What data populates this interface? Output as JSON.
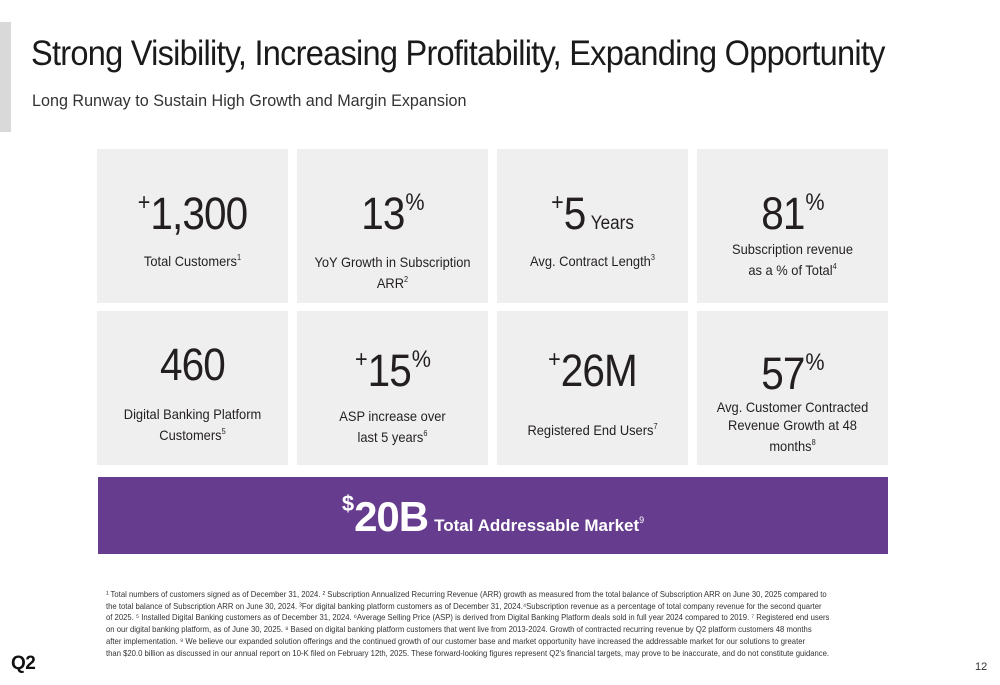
{
  "header": {
    "title": "Strong Visibility, Increasing Profitability, Expanding Opportunity",
    "subtitle": "Long Runway to Sustain High Growth and Margin Expansion"
  },
  "metrics": [
    {
      "prefix": "+",
      "value": "1,300",
      "suffix": "",
      "unit": "",
      "label": "Total Customers",
      "footnote": "1"
    },
    {
      "prefix": "",
      "value": "13",
      "suffix": "%",
      "unit": "",
      "label_line1": "YoY Growth in Subscription",
      "label_line2": "ARR",
      "footnote": "2"
    },
    {
      "prefix": "+",
      "value": "5",
      "suffix": "",
      "unit": "Years",
      "label": "Avg. Contract Length",
      "footnote": "3"
    },
    {
      "prefix": "",
      "value": "81",
      "suffix": "%",
      "unit": "",
      "label_line1": "Subscription revenue",
      "label_line2": "as a % of Total",
      "footnote": "4"
    },
    {
      "prefix": "",
      "value": "460",
      "suffix": "",
      "unit": "",
      "label_line1": "Digital Banking Platform",
      "label_line2": "Customers",
      "footnote": "5"
    },
    {
      "prefix": "+",
      "value": "15",
      "suffix": "%",
      "unit": "",
      "label_line1": "ASP increase over",
      "label_line2": "last 5 years",
      "footnote": "6"
    },
    {
      "prefix": "+",
      "value": "26M",
      "suffix": "",
      "unit": "",
      "label": "Registered End Users",
      "footnote": "7"
    },
    {
      "prefix": "",
      "value": "57",
      "suffix": "%",
      "unit": "",
      "label_line1": "Avg. Customer Contracted",
      "label_line2": "Revenue Growth at 48 months",
      "footnote": "8"
    }
  ],
  "tam": {
    "currency": "$",
    "value": "20B",
    "label": "Total Addressable Market",
    "footnote": "9"
  },
  "footnotes": {
    "lines": [
      "¹ Total numbers of customers signed as of December 31, 2024. ² Subscription Annualized Recurring Revenue (ARR) growth as measured from the total balance of Subscription ARR on June 30, 2025 compared to",
      "the total balance of Subscription ARR on June 30, 2024. ³For digital banking platform customers as of December 31, 2024.⁴Subscription revenue as a percentage of total company revenue for the second quarter",
      "of 2025. ⁵ Installed Digital Banking customers as of December 31, 2024. ⁶Average Selling Price (ASP) is derived from Digital Banking Platform deals sold in full year 2024 compared to 2019. ⁷ Registered end users",
      "on our digital banking platform, as of June 30, 2025. ⁸ Based on digital banking platform customers that went live from 2013-2024. Growth of contracted recurring revenue by Q2 platform customers 48 months",
      "after implementation. ⁹ We believe our expanded solution offerings and the continued growth of our customer base and market opportunity have increased the addressable market for our solutions to greater",
      "than $20.0 billion as discussed in our annual report on 10-K filed on February 12th, 2025. These forward-looking figures represent Q2's financial targets, may prove to be inaccurate, and do not constitute guidance."
    ]
  },
  "footer": {
    "logo": "Q2",
    "page_number": "12"
  }
}
